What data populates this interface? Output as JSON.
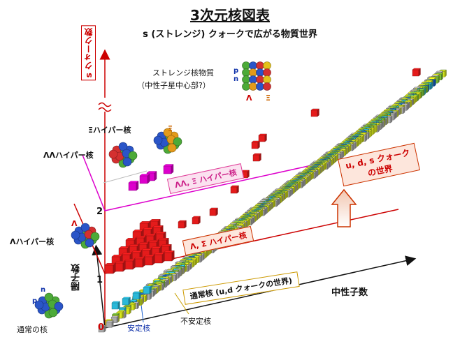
{
  "title": "3次元核図表",
  "subtitle": "s (ストレンジ) クォークで広がる物質世界",
  "axes": {
    "x_label": "中性子数",
    "y_label": "陽子数",
    "s_label": "s クォーク数",
    "s_ticks": [
      "0",
      "1",
      "2"
    ]
  },
  "bands": {
    "normal": "通常核 (u,d クォークの世界)",
    "single": "Λ, Σ ハイパー核",
    "double": "ΛΛ, Ξ ハイパー核",
    "uds": "u, d, s クォーク\nの世界"
  },
  "labels": {
    "strange_matter_1": "ストレンジ核物質",
    "strange_matter_2": "（中性子星中心部?）",
    "xi_hyper": "Ξハイパー核",
    "ll_hyper": "ΛΛハイパー核",
    "l_hyper": "Λハイパー核",
    "normal_nucleus": "通常の核",
    "stable": "安定核",
    "unstable": "不安定核",
    "p": "p",
    "n": "n",
    "lambda": "Λ",
    "xi": "Ξ"
  },
  "colors": {
    "axis_red": "#cc0000",
    "magenta": "#dd00cc",
    "pink_band": "#e0409a",
    "red_cube": "#e41b1b",
    "yellow_cube": "#d8e81e",
    "green_cube": "#7dc43a",
    "cyan_cube": "#2ab8d8",
    "blue_cube": "#1a60d0",
    "gray_cube": "#aaaaaa"
  }
}
